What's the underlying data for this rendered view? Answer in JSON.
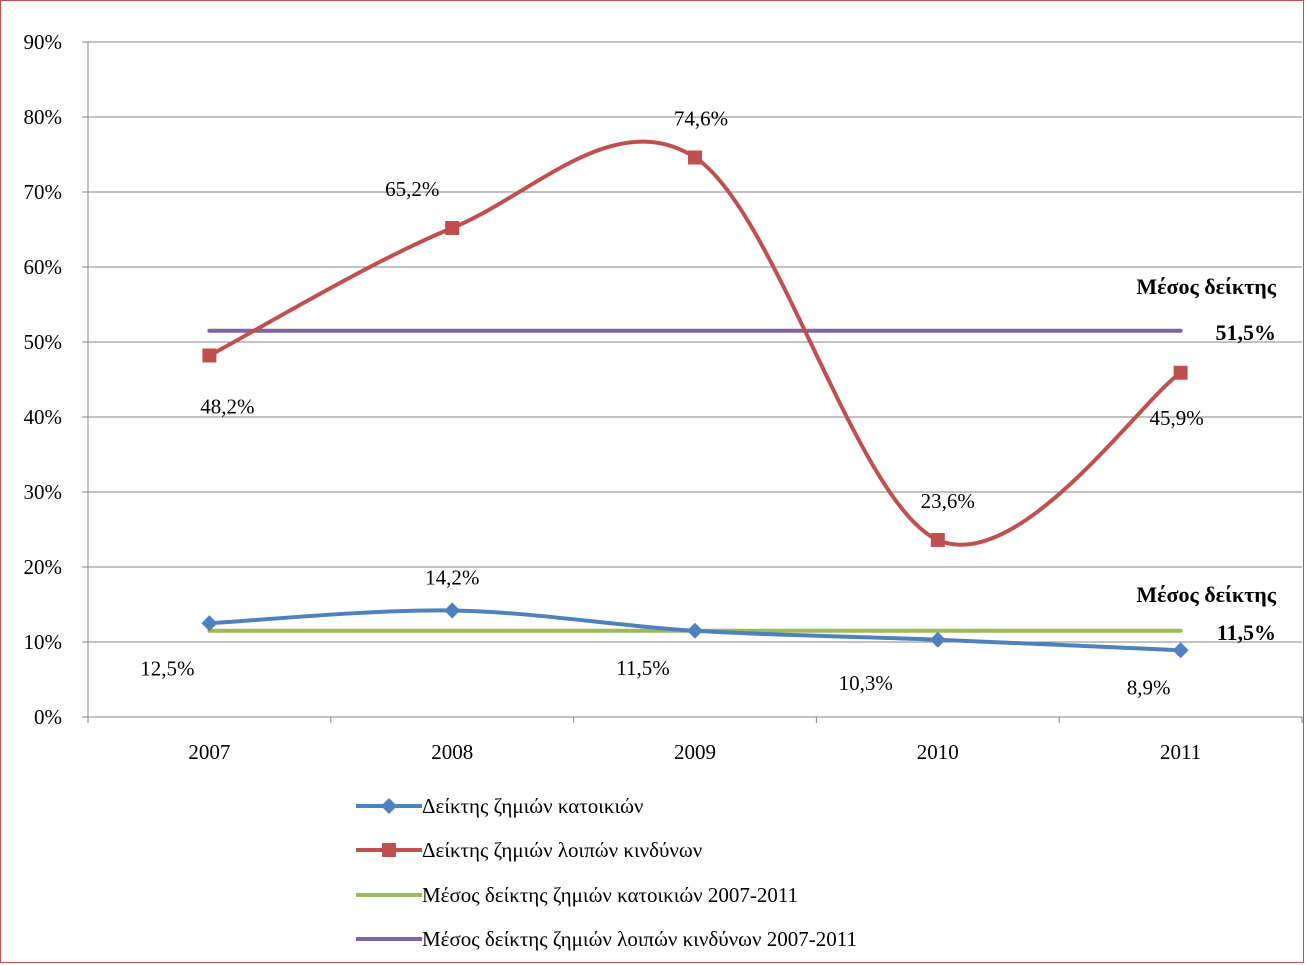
{
  "chart_data": {
    "type": "line",
    "categories": [
      "2007",
      "2008",
      "2009",
      "2010",
      "2011"
    ],
    "ylim": [
      0,
      90
    ],
    "yticks": [
      "0%",
      "10%",
      "20%",
      "30%",
      "40%",
      "50%",
      "60%",
      "70%",
      "80%",
      "90%"
    ],
    "grid": true,
    "legend_position": "bottom",
    "series": [
      {
        "name": "Δείκτης ζημιών κατοικιών",
        "values": [
          12.5,
          14.2,
          11.5,
          10.3,
          8.9
        ],
        "labels": [
          "12,5%",
          "14,2%",
          "11,5%",
          "10,3%",
          "8,9%"
        ],
        "color": "#4f81bd",
        "marker": "diamond",
        "smooth": true
      },
      {
        "name": "Δείκτης ζημιών λοιπών κινδύνων",
        "values": [
          48.2,
          65.2,
          74.6,
          23.6,
          45.9
        ],
        "labels": [
          "48,2%",
          "65,2%",
          "74,6%",
          "23,6%",
          "45,9%"
        ],
        "color": "#c0504d",
        "marker": "square",
        "smooth": true
      },
      {
        "name": "Μέσος δείκτης ζημιών κατοικιών 2007-2011",
        "values": [
          11.5,
          11.5,
          11.5,
          11.5,
          11.5
        ],
        "color": "#9bbb59",
        "marker": "none"
      },
      {
        "name": "Μέσος δείκτης ζημιών λοιπών κινδύνων 2007-2011",
        "values": [
          51.5,
          51.5,
          51.5,
          51.5,
          51.5
        ],
        "color": "#8064a2",
        "marker": "none"
      }
    ],
    "annotations": [
      {
        "title": "Μέσος δείκτης",
        "value": "51,5%"
      },
      {
        "title": "Μέσος δείκτης",
        "value": "11,5%"
      }
    ]
  }
}
